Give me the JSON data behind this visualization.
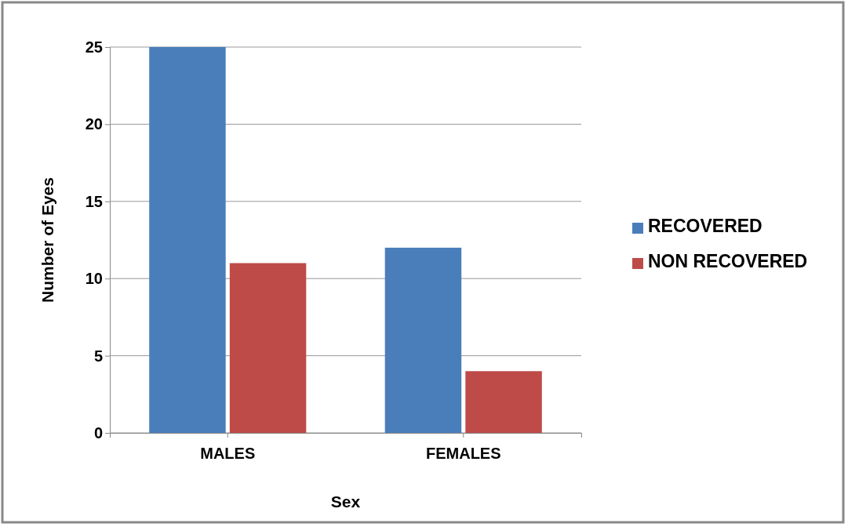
{
  "chart_data": {
    "type": "bar",
    "xlabel": "Sex",
    "ylabel": "Number of Eyes",
    "categories": [
      "MALES",
      "FEMALES"
    ],
    "series": [
      {
        "name": "RECOVERED",
        "color": "#4a7ebb",
        "values": [
          25,
          12
        ]
      },
      {
        "name": "NON RECOVERED",
        "color": "#be4b48",
        "values": [
          11,
          4
        ]
      }
    ],
    "ylim": [
      0,
      25
    ],
    "yticks": [
      0,
      5,
      10,
      15,
      20,
      25
    ],
    "grid": "y",
    "legend": "right"
  }
}
